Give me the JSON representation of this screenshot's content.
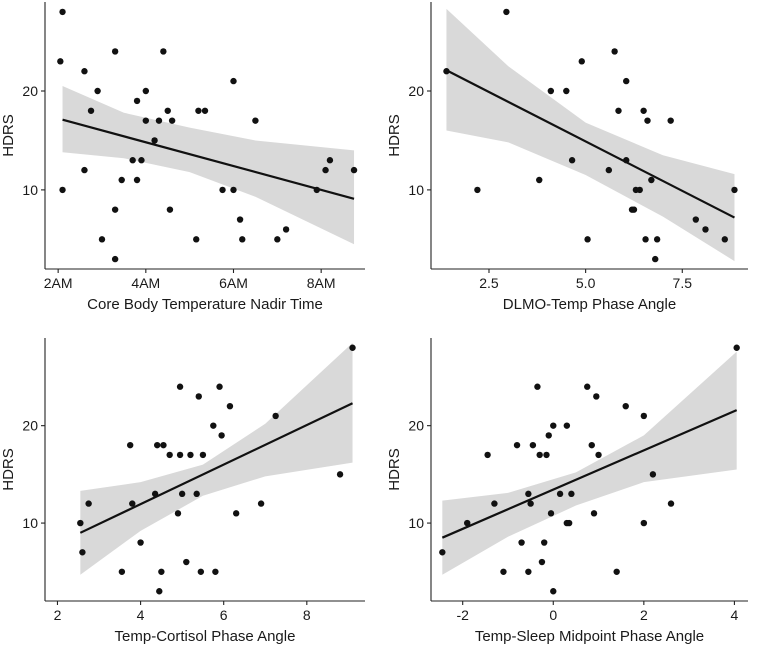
{
  "chart_data": [
    {
      "type": "scatter",
      "xlabel": "Core Body Temperature Nadir Time",
      "ylabel": "HDRS",
      "x_unit": "hour of day",
      "xlim": [
        1.7,
        9.0
      ],
      "ylim": [
        2.0,
        29.0
      ],
      "xticks": [
        2,
        4,
        6,
        8
      ],
      "xtick_labels": [
        "2AM",
        "4AM",
        "6AM",
        "8AM"
      ],
      "yticks": [
        10,
        20
      ],
      "ytick_labels": [
        "10",
        "20"
      ],
      "points": [
        [
          2.1,
          28
        ],
        [
          2.05,
          23
        ],
        [
          2.1,
          10
        ],
        [
          2.6,
          22
        ],
        [
          2.6,
          12
        ],
        [
          2.75,
          18
        ],
        [
          2.9,
          20
        ],
        [
          3.0,
          5
        ],
        [
          3.3,
          24
        ],
        [
          3.3,
          8
        ],
        [
          3.3,
          3
        ],
        [
          3.45,
          11
        ],
        [
          3.7,
          13
        ],
        [
          3.8,
          19
        ],
        [
          3.8,
          11
        ],
        [
          3.9,
          13
        ],
        [
          4.0,
          20
        ],
        [
          4.0,
          17
        ],
        [
          4.2,
          15
        ],
        [
          4.3,
          17
        ],
        [
          4.4,
          24
        ],
        [
          4.5,
          18
        ],
        [
          4.55,
          8
        ],
        [
          4.6,
          17
        ],
        [
          5.15,
          5
        ],
        [
          5.2,
          18
        ],
        [
          5.35,
          18
        ],
        [
          5.75,
          10
        ],
        [
          6.0,
          10
        ],
        [
          6.0,
          21
        ],
        [
          6.15,
          7
        ],
        [
          6.2,
          5
        ],
        [
          6.5,
          17
        ],
        [
          7.0,
          5
        ],
        [
          7.2,
          6
        ],
        [
          7.9,
          10
        ],
        [
          8.1,
          12
        ],
        [
          8.2,
          13
        ],
        [
          8.75,
          12
        ]
      ],
      "fit_line": [
        [
          2.1,
          17.1
        ],
        [
          8.75,
          9.1
        ]
      ],
      "ci_band": {
        "x": [
          2.1,
          3.5,
          5.0,
          6.5,
          8.75
        ],
        "upper": [
          20.5,
          17.8,
          16.3,
          15.0,
          14.0
        ],
        "lower": [
          13.8,
          13.2,
          11.8,
          9.3,
          4.5
        ]
      }
    },
    {
      "type": "scatter",
      "xlabel": "DLMO-Temp Phase Angle",
      "ylabel": "HDRS",
      "xlim": [
        1.0,
        9.2
      ],
      "ylim": [
        2.0,
        29.0
      ],
      "xticks": [
        2.5,
        5.0,
        7.5
      ],
      "xtick_labels": [
        "2.5",
        "5.0",
        "7.5"
      ],
      "yticks": [
        10,
        20
      ],
      "ytick_labels": [
        "10",
        "20"
      ],
      "points": [
        [
          1.4,
          22
        ],
        [
          2.2,
          10
        ],
        [
          2.95,
          28
        ],
        [
          3.8,
          11
        ],
        [
          4.1,
          20
        ],
        [
          4.5,
          20
        ],
        [
          4.65,
          13
        ],
        [
          4.9,
          23
        ],
        [
          5.05,
          5
        ],
        [
          5.6,
          12
        ],
        [
          5.75,
          24
        ],
        [
          5.85,
          18
        ],
        [
          6.05,
          13
        ],
        [
          6.05,
          21
        ],
        [
          6.2,
          8
        ],
        [
          6.25,
          8
        ],
        [
          6.3,
          10
        ],
        [
          6.4,
          10
        ],
        [
          6.5,
          18
        ],
        [
          6.55,
          5
        ],
        [
          6.6,
          17
        ],
        [
          6.7,
          11
        ],
        [
          6.8,
          3
        ],
        [
          6.85,
          5
        ],
        [
          7.2,
          17
        ],
        [
          7.85,
          7
        ],
        [
          8.1,
          6
        ],
        [
          8.6,
          5
        ],
        [
          8.85,
          10
        ]
      ],
      "fit_line": [
        [
          1.4,
          22.1
        ],
        [
          8.85,
          7.2
        ]
      ],
      "ci_band": {
        "x": [
          1.4,
          3.0,
          5.0,
          7.0,
          8.85
        ],
        "upper": [
          28.3,
          22.5,
          16.8,
          13.5,
          11.6
        ],
        "lower": [
          16.0,
          14.8,
          11.5,
          7.3,
          2.8
        ]
      }
    },
    {
      "type": "scatter",
      "xlabel": "Temp-Cortisol Phase Angle",
      "ylabel": "HDRS",
      "xlim": [
        1.7,
        9.4
      ],
      "ylim": [
        2.0,
        29.0
      ],
      "xticks": [
        2,
        4,
        6,
        8
      ],
      "xtick_labels": [
        "2",
        "4",
        "6",
        "8"
      ],
      "yticks": [
        10,
        20
      ],
      "ytick_labels": [
        "10",
        "20"
      ],
      "points": [
        [
          2.55,
          10
        ],
        [
          2.6,
          7
        ],
        [
          2.75,
          12
        ],
        [
          3.55,
          5
        ],
        [
          3.75,
          18
        ],
        [
          3.8,
          12
        ],
        [
          4.0,
          8
        ],
        [
          4.35,
          13
        ],
        [
          4.4,
          18
        ],
        [
          4.45,
          3
        ],
        [
          4.5,
          5
        ],
        [
          4.55,
          18
        ],
        [
          4.7,
          17
        ],
        [
          4.9,
          11
        ],
        [
          4.95,
          24
        ],
        [
          4.95,
          17
        ],
        [
          5.0,
          13
        ],
        [
          5.1,
          6
        ],
        [
          5.2,
          17
        ],
        [
          5.35,
          13
        ],
        [
          5.4,
          23
        ],
        [
          5.45,
          5
        ],
        [
          5.5,
          17
        ],
        [
          5.75,
          20
        ],
        [
          5.8,
          5
        ],
        [
          5.9,
          24
        ],
        [
          5.95,
          19
        ],
        [
          6.15,
          22
        ],
        [
          6.3,
          11
        ],
        [
          6.9,
          12
        ],
        [
          7.25,
          21
        ],
        [
          8.8,
          15
        ],
        [
          9.1,
          28
        ]
      ],
      "fit_line": [
        [
          2.55,
          9.0
        ],
        [
          9.1,
          22.3
        ]
      ],
      "ci_band": {
        "x": [
          2.55,
          4.0,
          5.5,
          7.0,
          9.1
        ],
        "upper": [
          13.3,
          14.2,
          16.0,
          20.2,
          28.5
        ],
        "lower": [
          4.7,
          9.2,
          12.8,
          14.8,
          16.2
        ]
      }
    },
    {
      "type": "scatter",
      "xlabel": "Temp-Sleep Midpoint Phase Angle",
      "ylabel": "HDRS",
      "xlim": [
        -2.7,
        4.3
      ],
      "ylim": [
        2.0,
        29.0
      ],
      "xticks": [
        -2,
        0,
        2,
        4
      ],
      "xtick_labels": [
        "-2",
        "0",
        "2",
        "4"
      ],
      "yticks": [
        10,
        20
      ],
      "ytick_labels": [
        "10",
        "20"
      ],
      "points": [
        [
          -2.45,
          7
        ],
        [
          -1.9,
          10
        ],
        [
          -1.45,
          17
        ],
        [
          -1.3,
          12
        ],
        [
          -1.1,
          5
        ],
        [
          -0.8,
          18
        ],
        [
          -0.7,
          8
        ],
        [
          -0.55,
          13
        ],
        [
          -0.55,
          5
        ],
        [
          -0.5,
          12
        ],
        [
          -0.45,
          18
        ],
        [
          -0.35,
          24
        ],
        [
          -0.3,
          17
        ],
        [
          -0.25,
          6
        ],
        [
          -0.2,
          8
        ],
        [
          -0.15,
          17
        ],
        [
          -0.1,
          19
        ],
        [
          -0.05,
          11
        ],
        [
          0.0,
          3
        ],
        [
          0.0,
          20
        ],
        [
          0.15,
          13
        ],
        [
          0.3,
          20
        ],
        [
          0.3,
          10
        ],
        [
          0.35,
          10
        ],
        [
          0.4,
          13
        ],
        [
          0.75,
          24
        ],
        [
          0.85,
          18
        ],
        [
          0.9,
          11
        ],
        [
          0.95,
          23
        ],
        [
          1.0,
          17
        ],
        [
          1.4,
          5
        ],
        [
          1.6,
          22
        ],
        [
          2.0,
          21
        ],
        [
          2.0,
          10
        ],
        [
          2.2,
          15
        ],
        [
          2.6,
          12
        ],
        [
          4.05,
          28
        ]
      ],
      "fit_line": [
        [
          -2.45,
          8.5
        ],
        [
          4.05,
          21.6
        ]
      ],
      "ci_band": {
        "x": [
          -2.45,
          -1.0,
          0.5,
          2.0,
          4.05
        ],
        "upper": [
          12.3,
          13.1,
          15.2,
          19.0,
          27.6
        ],
        "lower": [
          4.7,
          8.6,
          11.8,
          14.2,
          15.5
        ]
      }
    }
  ]
}
